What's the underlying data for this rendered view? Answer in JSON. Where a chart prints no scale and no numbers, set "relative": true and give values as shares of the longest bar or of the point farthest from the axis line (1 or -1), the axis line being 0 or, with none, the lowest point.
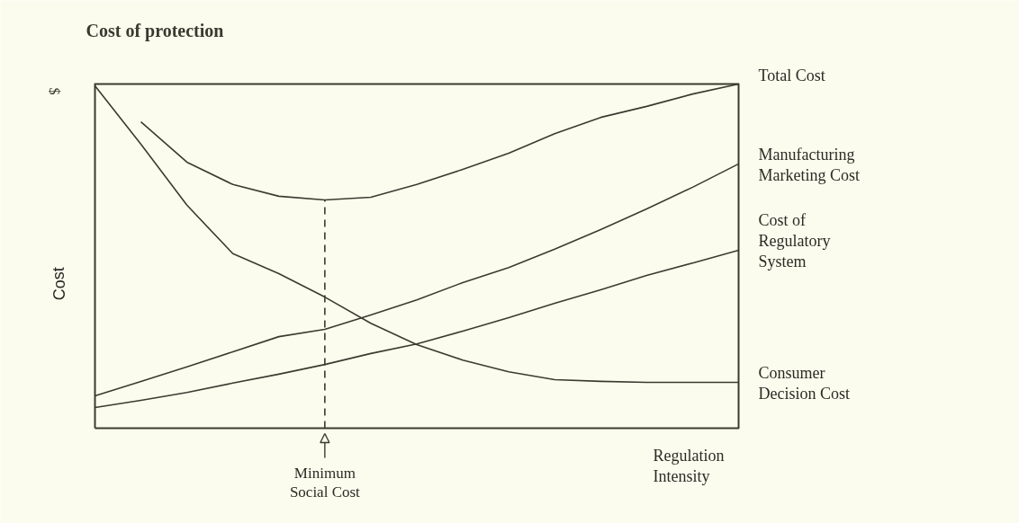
{
  "chart_data": {
    "type": "line",
    "title": "Cost of protection",
    "xlabel": "Regulation\nIntensity",
    "ylabel": "Cost",
    "annotations": [
      "$",
      "Minimum\nSocial Cost"
    ],
    "relative": true,
    "marker": "none",
    "line_style": "solid",
    "categories": [
      null,
      null,
      null,
      null,
      null,
      null,
      null,
      null,
      null,
      null,
      null,
      null,
      null,
      null,
      null
    ],
    "series": [
      {
        "name": "Total Cost",
        "color": "#3a3a30",
        "values": [
          null,
          0.89,
          0.773,
          0.708,
          0.674,
          0.663,
          0.671,
          0.708,
          0.752,
          0.799,
          0.856,
          0.903,
          0.935,
          0.971,
          1.0
        ]
      },
      {
        "name": "Manufacturing\nMarketing Cost",
        "color": "#3a3a30",
        "values": [
          0.094,
          0.136,
          0.178,
          0.222,
          0.266,
          0.287,
          0.329,
          0.373,
          0.423,
          0.467,
          0.52,
          0.577,
          0.637,
          0.7,
          0.768
        ]
      },
      {
        "name": "Cost of\nRegulatory\nSystem",
        "color": "#3a3a30",
        "values": [
          0.06,
          0.081,
          0.104,
          0.131,
          0.157,
          0.185,
          0.217,
          0.245,
          0.282,
          0.321,
          0.363,
          0.402,
          0.444,
          0.48,
          0.517
        ]
      },
      {
        "name": "Consumer\nDecision Cost",
        "color": "#3a3a30",
        "values": [
          0.995,
          0.825,
          0.648,
          0.507,
          0.449,
          0.381,
          0.305,
          0.243,
          0.198,
          0.164,
          0.141,
          0.136,
          0.133,
          0.133,
          0.133
        ]
      }
    ]
  }
}
